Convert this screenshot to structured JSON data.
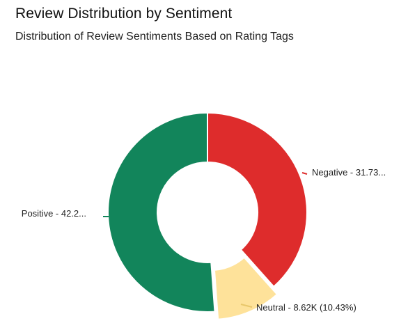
{
  "header": {
    "title": "Review Distribution by Sentiment",
    "subtitle": "Distribution of Review Sentiments Based on Rating Tags"
  },
  "chart_data": {
    "type": "pie",
    "variant": "donut",
    "title": "Review Distribution by Sentiment",
    "subtitle": "Distribution of Review Sentiments Based on Rating Tags",
    "slices": [
      {
        "name": "Negative",
        "percent": 38.4,
        "color": "#de2c2c",
        "label": "Negative - 31.73...",
        "exploded": false
      },
      {
        "name": "Neutral",
        "value": "8.62K",
        "percent": 10.43,
        "color": "#fee29a",
        "label": "Neutral - 8.62K (10.43%)",
        "exploded": true
      },
      {
        "name": "Positive",
        "percent": 51.17,
        "color": "#12855b",
        "label": "Positive - 42.2...",
        "exploded": false
      }
    ]
  }
}
